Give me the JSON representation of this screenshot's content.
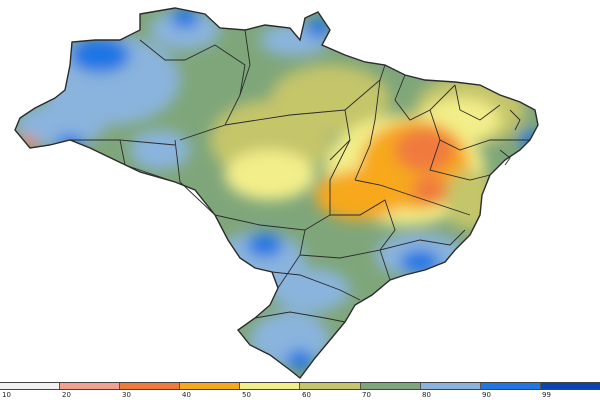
{
  "legend": {
    "labels": [
      "10",
      "20",
      "30",
      "40",
      "50",
      "60",
      "70",
      "80",
      "90",
      "99"
    ],
    "colors": [
      "#f2f2f2",
      "#f2a090",
      "#f07a3c",
      "#f7a81d",
      "#f2ee8a",
      "#c5c56a",
      "#7fa67a",
      "#8ab4dd",
      "#1f76e4",
      "#0b45b0"
    ]
  },
  "map_colors": {
    "base": "#7fa67a",
    "blue_light": "#8ab4dd",
    "blue_mid": "#4a93e6",
    "blue_dark": "#1f76e4",
    "olive": "#c5c56a",
    "yellow": "#f2ee8a",
    "orange": "#f7a81d",
    "deep_orange": "#f07a3c",
    "red": "#e04a2a",
    "border": "#2b2b2b"
  }
}
